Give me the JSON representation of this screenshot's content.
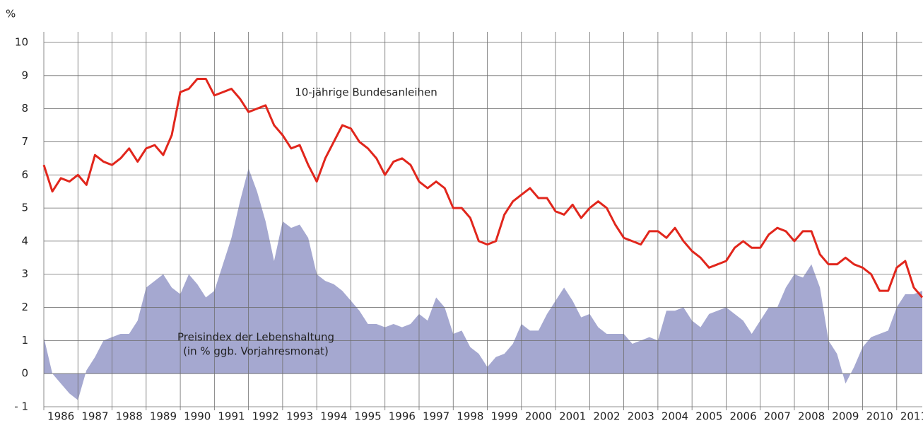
{
  "chart_data": {
    "type": "line",
    "unit_label": "%",
    "x": [
      1986,
      1986.25,
      1986.5,
      1986.75,
      1987,
      1987.25,
      1987.5,
      1987.75,
      1988,
      1988.25,
      1988.5,
      1988.75,
      1989,
      1989.25,
      1989.5,
      1989.75,
      1990,
      1990.25,
      1990.5,
      1990.75,
      1991,
      1991.25,
      1991.5,
      1991.75,
      1992,
      1992.25,
      1992.5,
      1992.75,
      1993,
      1993.25,
      1993.5,
      1993.75,
      1994,
      1994.25,
      1994.5,
      1994.75,
      1995,
      1995.25,
      1995.5,
      1995.75,
      1996,
      1996.25,
      1996.5,
      1996.75,
      1997,
      1997.25,
      1997.5,
      1997.75,
      1998,
      1998.25,
      1998.5,
      1998.75,
      1999,
      1999.25,
      1999.5,
      1999.75,
      2000,
      2000.25,
      2000.5,
      2000.75,
      2001,
      2001.25,
      2001.5,
      2001.75,
      2002,
      2002.25,
      2002.5,
      2002.75,
      2003,
      2003.25,
      2003.5,
      2003.75,
      2004,
      2004.25,
      2004.5,
      2004.75,
      2005,
      2005.25,
      2005.5,
      2005.75,
      2006,
      2006.25,
      2006.5,
      2006.75,
      2007,
      2007.25,
      2007.5,
      2007.75,
      2008,
      2008.25,
      2008.5,
      2008.75,
      2009,
      2009.25,
      2009.5,
      2009.75,
      2010,
      2010.25,
      2010.5,
      2010.75,
      2011,
      2011.25,
      2011.5,
      2011.75
    ],
    "series": [
      {
        "name": "Preisindex der Lebenshaltung",
        "note": "(in % ggb. Vorjahresmonat)",
        "kind": "area",
        "color": "#a5a8d0",
        "values": [
          1.1,
          0.0,
          -0.3,
          -0.6,
          -0.8,
          0.1,
          0.5,
          1.0,
          1.1,
          1.2,
          1.2,
          1.6,
          2.6,
          2.8,
          3.0,
          2.6,
          2.4,
          3.0,
          2.7,
          2.3,
          2.5,
          3.3,
          4.1,
          5.2,
          6.2,
          5.5,
          4.6,
          3.4,
          4.6,
          4.4,
          4.5,
          4.1,
          3.0,
          2.8,
          2.7,
          2.5,
          2.2,
          1.9,
          1.5,
          1.5,
          1.4,
          1.5,
          1.4,
          1.5,
          1.8,
          1.6,
          2.3,
          2.0,
          1.2,
          1.3,
          0.8,
          0.6,
          0.2,
          0.5,
          0.6,
          0.9,
          1.5,
          1.3,
          1.3,
          1.8,
          2.2,
          2.6,
          2.2,
          1.7,
          1.8,
          1.4,
          1.2,
          1.2,
          1.2,
          0.9,
          1.0,
          1.1,
          1.0,
          1.9,
          1.9,
          2.0,
          1.6,
          1.4,
          1.8,
          1.9,
          2.0,
          1.8,
          1.6,
          1.2,
          1.6,
          2.0,
          2.0,
          2.6,
          3.0,
          2.9,
          3.3,
          2.6,
          1.0,
          0.6,
          -0.3,
          0.2,
          0.8,
          1.1,
          1.2,
          1.3,
          2.0,
          2.4,
          2.4,
          2.5
        ]
      },
      {
        "name": "10-jährige Bundesanleihen",
        "kind": "line",
        "color": "#e1261c",
        "values": [
          6.3,
          5.5,
          5.9,
          5.8,
          6.0,
          5.7,
          6.6,
          6.4,
          6.3,
          6.5,
          6.8,
          6.4,
          6.8,
          6.9,
          6.6,
          7.2,
          8.5,
          8.6,
          8.9,
          8.9,
          8.4,
          8.5,
          8.6,
          8.3,
          7.9,
          8.0,
          8.1,
          7.5,
          7.2,
          6.8,
          6.9,
          6.3,
          5.8,
          6.5,
          7.0,
          7.5,
          7.4,
          7.0,
          6.8,
          6.5,
          6.0,
          6.4,
          6.5,
          6.3,
          5.8,
          5.6,
          5.8,
          5.6,
          5.0,
          5.0,
          4.7,
          4.0,
          3.9,
          4.0,
          4.8,
          5.2,
          5.4,
          5.6,
          5.3,
          5.3,
          4.9,
          4.8,
          5.1,
          4.7,
          5.0,
          5.2,
          5.0,
          4.5,
          4.1,
          4.0,
          3.9,
          4.3,
          4.3,
          4.1,
          4.4,
          4.0,
          3.7,
          3.5,
          3.2,
          3.3,
          3.4,
          3.8,
          4.0,
          3.8,
          3.8,
          4.2,
          4.4,
          4.3,
          4.0,
          4.3,
          4.3,
          3.6,
          3.3,
          3.3,
          3.5,
          3.3,
          3.2,
          3.0,
          2.5,
          2.5,
          3.2,
          3.4,
          2.6,
          2.3
        ]
      }
    ],
    "xlim": [
      1986,
      2011.75
    ],
    "xgrid": [
      1986,
      1987,
      1988,
      1989,
      1990,
      1991,
      1992,
      1993,
      1994,
      1995,
      1996,
      1997,
      1998,
      1999,
      2000,
      2001,
      2002,
      2003,
      2004,
      2005,
      2006,
      2007,
      2008,
      2009,
      2010,
      2011
    ],
    "xticks": [
      {
        "value": 1986.5,
        "label": "1986"
      },
      {
        "value": 1987.5,
        "label": "1987"
      },
      {
        "value": 1988.5,
        "label": "1988"
      },
      {
        "value": 1989.5,
        "label": "1989"
      },
      {
        "value": 1990.5,
        "label": "1990"
      },
      {
        "value": 1991.5,
        "label": "1991"
      },
      {
        "value": 1992.5,
        "label": "1992"
      },
      {
        "value": 1993.5,
        "label": "1993"
      },
      {
        "value": 1994.5,
        "label": "1994"
      },
      {
        "value": 1995.5,
        "label": "1995"
      },
      {
        "value": 1996.5,
        "label": "1996"
      },
      {
        "value": 1997.5,
        "label": "1997"
      },
      {
        "value": 1998.5,
        "label": "1998"
      },
      {
        "value": 1999.5,
        "label": "1999"
      },
      {
        "value": 2000.5,
        "label": "2000"
      },
      {
        "value": 2001.5,
        "label": "2001"
      },
      {
        "value": 2002.5,
        "label": "2002"
      },
      {
        "value": 2003.5,
        "label": "2003"
      },
      {
        "value": 2004.5,
        "label": "2004"
      },
      {
        "value": 2005.5,
        "label": "2005"
      },
      {
        "value": 2006.5,
        "label": "2006"
      },
      {
        "value": 2007.5,
        "label": "2007"
      },
      {
        "value": 2008.5,
        "label": "2008"
      },
      {
        "value": 2009.5,
        "label": "2009"
      },
      {
        "value": 2010.5,
        "label": "2010"
      },
      {
        "value": 2011.5,
        "label": "2011"
      }
    ],
    "ylim": [
      -1,
      10
    ],
    "yticks": [
      {
        "value": -1,
        "label": "- 1"
      },
      0,
      1,
      2,
      3,
      4,
      5,
      6,
      7,
      8,
      9,
      10
    ],
    "grid": true
  }
}
